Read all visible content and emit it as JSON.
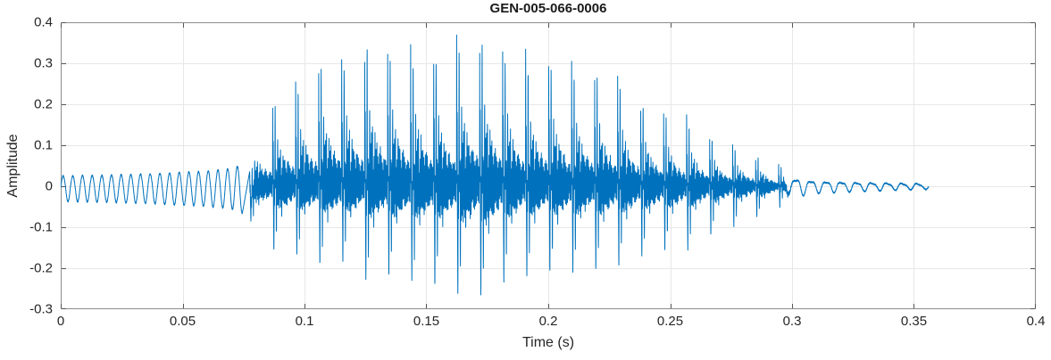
{
  "chart_data": {
    "type": "line",
    "title": "GEN-005-066-0006",
    "xlabel": "Time (s)",
    "ylabel": "Amplitude",
    "xlim": [
      0,
      0.4
    ],
    "ylim": [
      -0.3,
      0.4
    ],
    "xticks": [
      0,
      0.05,
      0.1,
      0.15,
      0.2,
      0.25,
      0.3,
      0.35,
      0.4
    ],
    "xtick_labels": [
      "0",
      "0.05",
      "0.1",
      "0.15",
      "0.2",
      "0.25",
      "0.3",
      "0.35",
      "0.4"
    ],
    "yticks": [
      -0.3,
      -0.2,
      -0.1,
      0,
      0.1,
      0.2,
      0.3,
      0.4
    ],
    "ytick_labels": [
      "-0.3",
      "-0.2",
      "-0.1",
      "0",
      "0.1",
      "0.2",
      "0.3",
      "0.4"
    ],
    "grid": true,
    "box": true,
    "colors": {
      "line": "#0072BD",
      "axis_box": "#8c8c8c",
      "tick_mark": "#545454",
      "grid_line": "#e7e7e7",
      "label_text": "#262626",
      "title_text": "#1a1a1a",
      "background": "#ffffff"
    },
    "signal": {
      "t_start": 0,
      "t_end": 0.356,
      "envelope": {
        "t": [
          0.0,
          0.02,
          0.04,
          0.06,
          0.07,
          0.076,
          0.08,
          0.085,
          0.092,
          0.1,
          0.108,
          0.116,
          0.124,
          0.132,
          0.14,
          0.15,
          0.158,
          0.166,
          0.175,
          0.184,
          0.195,
          0.205,
          0.216,
          0.228,
          0.238,
          0.248,
          0.258,
          0.268,
          0.278,
          0.288,
          0.296,
          0.302,
          0.31,
          0.325,
          0.34,
          0.356
        ],
        "upper": [
          0.028,
          0.03,
          0.034,
          0.04,
          0.046,
          0.06,
          0.15,
          0.19,
          0.23,
          0.28,
          0.32,
          0.355,
          0.37,
          0.36,
          0.37,
          0.385,
          0.355,
          0.36,
          0.375,
          0.34,
          0.33,
          0.315,
          0.3,
          0.272,
          0.235,
          0.195,
          0.16,
          0.13,
          0.1,
          0.08,
          0.048,
          0.026,
          0.018,
          0.014,
          0.011,
          0.008
        ],
        "lower": [
          -0.034,
          -0.036,
          -0.04,
          -0.046,
          -0.052,
          -0.066,
          -0.12,
          -0.14,
          -0.16,
          -0.17,
          -0.185,
          -0.2,
          -0.215,
          -0.225,
          -0.235,
          -0.27,
          -0.25,
          -0.245,
          -0.255,
          -0.23,
          -0.215,
          -0.21,
          -0.2,
          -0.19,
          -0.175,
          -0.16,
          -0.148,
          -0.12,
          -0.095,
          -0.075,
          -0.048,
          -0.026,
          -0.018,
          -0.014,
          -0.011,
          -0.008
        ]
      },
      "synthesis": {
        "fs": 24000,
        "seed": 7,
        "noise_amp": 0.0045,
        "pre": {
          "end": 0.0775,
          "freq_hz": 252,
          "offset": -0.003
        },
        "voiced": {
          "start": 0.0775,
          "end": 0.2985,
          "pitch_hz": 106,
          "formant_cycles": 9,
          "formant_decay": 6.0,
          "sub_cycles": 26,
          "sub_decay": 1.4,
          "sub_amp": 0.45,
          "sub_phase": 1.3,
          "hf_cycles": 47,
          "hf_amp": 0.22,
          "hf_phase": 0.7,
          "jitter": 0.08
        },
        "tail": {
          "freq_hz": 160,
          "freq2_hz": 317,
          "amp2": 0.35
        }
      }
    }
  }
}
